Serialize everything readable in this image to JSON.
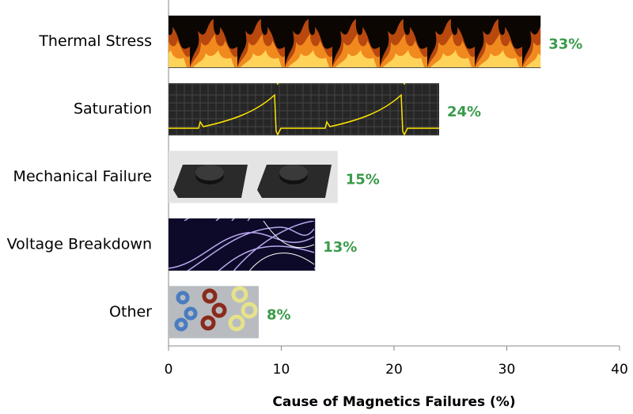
{
  "chart_data": {
    "type": "bar",
    "orientation": "horizontal",
    "xlabel": "Cause of Magnetics Failures (%)",
    "categories": [
      "Thermal Stress",
      "Saturation",
      "Mechanical Failure",
      "Voltage Breakdown",
      "Other"
    ],
    "values": [
      33,
      24,
      15,
      13,
      8
    ],
    "value_labels": [
      "33%",
      "24%",
      "15%",
      "13%",
      "8%"
    ],
    "xlim": [
      0,
      40
    ],
    "xticks": [
      0,
      10,
      20,
      30,
      40
    ]
  }
}
